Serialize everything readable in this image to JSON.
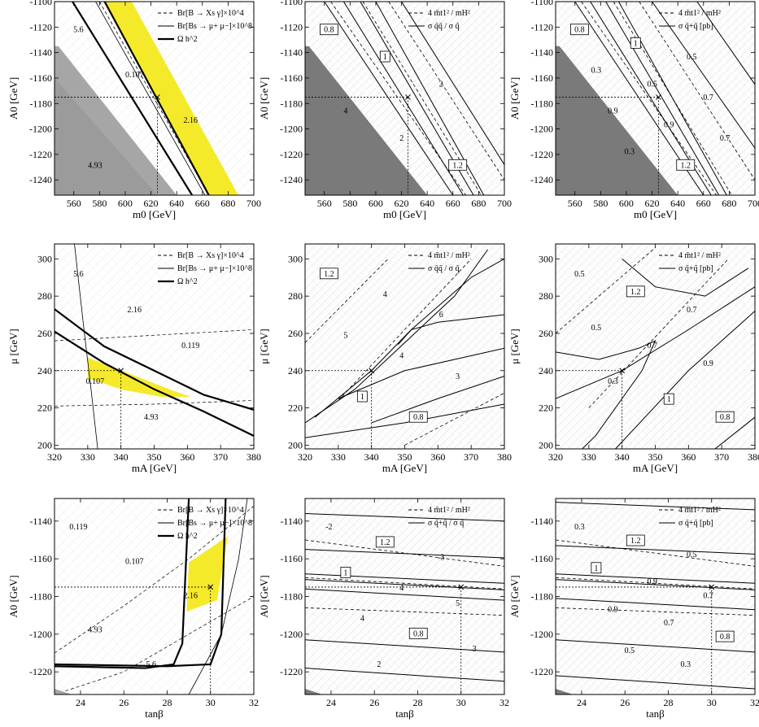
{
  "figure": {
    "x_labels": {
      "m0": "m0 [GeV]",
      "mA": "mA [GeV]",
      "tanb": "tanβ"
    },
    "y_labels": {
      "A0": "A0 [GeV]",
      "mu": "μ [GeV]"
    },
    "colors": {
      "allowed_band": "#f5ea2a",
      "excluded_grey_light": "#a6a6a6",
      "excluded_grey_dark": "#7a7a7a",
      "hatch": "#d9d9d9"
    }
  },
  "chart_data": [
    {
      "type": "contour",
      "row": 0,
      "col": 0,
      "xlabel": "m0 [GeV]",
      "ylabel": "A0 [GeV]",
      "xlim": [
        545,
        700
      ],
      "ylim": [
        -1252,
        -1100
      ],
      "xticks": [
        "560",
        "580",
        "600",
        "620",
        "640",
        "660",
        "680",
        "700"
      ],
      "yticks": [
        "-1100",
        "-1120",
        "-1140",
        "-1160",
        "-1180",
        "-1200",
        "-1220",
        "-1240"
      ],
      "legend": [
        "Br[B → Xs γ]×10^4",
        "Br[Bs → μ+ μ−]×10^8",
        "Ω h^2"
      ],
      "contour_labels": [
        "5.6",
        "0.107",
        "2.16",
        "4.93"
      ],
      "marker": {
        "x": 625,
        "y": -1175
      }
    },
    {
      "type": "contour",
      "row": 0,
      "col": 1,
      "xlabel": "m0 [GeV]",
      "ylabel": "A0 [GeV]",
      "xlim": [
        545,
        700
      ],
      "ylim": [
        -1252,
        -1100
      ],
      "xticks": [
        "560",
        "580",
        "600",
        "620",
        "640",
        "660",
        "680",
        "700"
      ],
      "yticks": [
        "-1100",
        "-1120",
        "-1140",
        "-1160",
        "-1180",
        "-1200",
        "-1220",
        "-1240"
      ],
      "legend": [
        "4 m̃t1² / mH²",
        "σ q̃q̃ / σ q̃"
      ],
      "contour_labels": [
        "0.8",
        "1",
        "2",
        "4",
        "2",
        "1.2"
      ],
      "marker": {
        "x": 625,
        "y": -1175
      }
    },
    {
      "type": "contour",
      "row": 0,
      "col": 2,
      "xlabel": "m0 [GeV]",
      "ylabel": "A0 [GeV]",
      "xlim": [
        545,
        700
      ],
      "ylim": [
        -1252,
        -1100
      ],
      "xticks": [
        "560",
        "580",
        "600",
        "620",
        "640",
        "660",
        "680",
        "700"
      ],
      "yticks": [
        "-1100",
        "-1120",
        "-1140",
        "-1160",
        "-1180",
        "-1200",
        "-1220",
        "-1240"
      ],
      "legend": [
        "4 m̃t1² / mH²",
        "σ q̃+q̃ [pb]"
      ],
      "contour_labels": [
        "0.8",
        "1",
        "0.5",
        "0.3",
        "0.5",
        "0.7",
        "0.9",
        "0.9",
        "0.7",
        "0.3",
        "1.2"
      ],
      "marker": {
        "x": 625,
        "y": -1175
      }
    },
    {
      "type": "contour",
      "row": 1,
      "col": 0,
      "xlabel": "mA [GeV]",
      "ylabel": "μ [GeV]",
      "xlim": [
        320,
        380
      ],
      "ylim": [
        198,
        308
      ],
      "xticks": [
        "320",
        "330",
        "340",
        "350",
        "360",
        "370",
        "380"
      ],
      "yticks": [
        "200",
        "220",
        "240",
        "260",
        "280",
        "300"
      ],
      "legend": [
        "Br[B → Xs γ]×10^4",
        "Br[Bs → μ+ μ−]×10^8",
        "Ω h^2"
      ],
      "contour_labels": [
        "5.6",
        "2.16",
        "0.119",
        "0.107",
        "4.93"
      ],
      "marker": {
        "x": 340,
        "y": 240
      }
    },
    {
      "type": "contour",
      "row": 1,
      "col": 1,
      "xlabel": "mA [GeV]",
      "ylabel": "μ [GeV]",
      "xlim": [
        320,
        380
      ],
      "ylim": [
        198,
        308
      ],
      "xticks": [
        "320",
        "330",
        "340",
        "350",
        "360",
        "370",
        "380"
      ],
      "yticks": [
        "200",
        "220",
        "240",
        "260",
        "280",
        "300"
      ],
      "legend": [
        "4 m̃t1² / mH²",
        "σ q̃q̃ / σ q̃"
      ],
      "contour_labels": [
        "1.2",
        "4",
        "6",
        "5",
        "4",
        "3",
        "1",
        "0.8"
      ],
      "marker": {
        "x": 340,
        "y": 240
      }
    },
    {
      "type": "contour",
      "row": 1,
      "col": 2,
      "xlabel": "mA [GeV]",
      "ylabel": "μ [GeV]",
      "xlim": [
        320,
        380
      ],
      "ylim": [
        198,
        308
      ],
      "xticks": [
        "320",
        "330",
        "340",
        "350",
        "360",
        "370",
        "380"
      ],
      "yticks": [
        "200",
        "220",
        "240",
        "260",
        "280",
        "300"
      ],
      "legend": [
        "4 m̃t1² / mH²",
        "σ q̃+q̃ [pb]"
      ],
      "contour_labels": [
        "0.5",
        "1.2",
        "0.7",
        "0.5",
        "0.7",
        "0.9",
        "0.3",
        "1",
        "0.8"
      ],
      "marker": {
        "x": 340,
        "y": 240
      }
    },
    {
      "type": "contour",
      "row": 2,
      "col": 0,
      "xlabel": "tanβ",
      "ylabel": "A0 [GeV]",
      "xlim": [
        22.8,
        32
      ],
      "ylim": [
        -1232,
        -1128
      ],
      "xticks": [
        "24",
        "26",
        "28",
        "30",
        "32"
      ],
      "yticks": [
        "-1140",
        "-1160",
        "-1180",
        "-1200",
        "-1220"
      ],
      "legend": [
        "Br[B → Xs γ]×10^4",
        "Br[Bs → μ+ μ−]×10^8",
        "Ω h^2"
      ],
      "contour_labels": [
        "0.119",
        "0.107",
        "2.16",
        "4.93",
        "5.6"
      ],
      "marker": {
        "x": 30,
        "y": -1175
      }
    },
    {
      "type": "contour",
      "row": 2,
      "col": 1,
      "xlabel": "tanβ",
      "ylabel": "A0 [GeV]",
      "xlim": [
        22.8,
        32
      ],
      "ylim": [
        -1232,
        -1128
      ],
      "xticks": [
        "24",
        "26",
        "28",
        "30",
        "32"
      ],
      "yticks": [
        "-1140",
        "-1160",
        "-1180",
        "-1200",
        "-1220"
      ],
      "legend": [
        "4 m̃t1² / mH²",
        "σ q̃+q̃ / σ q̃"
      ],
      "contour_labels": [
        "-2",
        "1.2",
        "-3",
        "1",
        "4",
        "5",
        "4",
        "0.8",
        "3",
        "2"
      ],
      "marker": {
        "x": 30,
        "y": -1175
      }
    },
    {
      "type": "contour",
      "row": 2,
      "col": 2,
      "xlabel": "tanβ",
      "ylabel": "A0 [GeV]",
      "xlim": [
        22.8,
        32
      ],
      "ylim": [
        -1232,
        -1128
      ],
      "xticks": [
        "24",
        "26",
        "28",
        "30",
        "32"
      ],
      "yticks": [
        "-1140",
        "-1160",
        "-1180",
        "-1200",
        "-1220"
      ],
      "legend": [
        "4 m̃t1² / mH²",
        "σ q̃+q̃ [pb]"
      ],
      "contour_labels": [
        "0.3",
        "1.2",
        "0.5",
        "1",
        "0.9",
        "0.7",
        "0.9",
        "0.7",
        "0.8",
        "0.5",
        "0.3"
      ],
      "marker": {
        "x": 30,
        "y": -1175
      }
    }
  ]
}
